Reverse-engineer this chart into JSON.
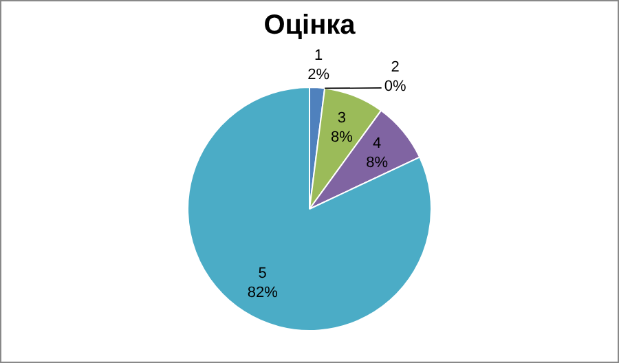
{
  "chart_data": {
    "type": "pie",
    "title": "Оцінка",
    "categories": [
      "1",
      "2",
      "3",
      "4",
      "5"
    ],
    "values": [
      2,
      0,
      8,
      8,
      82
    ],
    "value_labels": [
      "2%",
      "0%",
      "8%",
      "8%",
      "82%"
    ],
    "colors": [
      "#4f81bd",
      "#c0504d",
      "#9bbb59",
      "#8064a2",
      "#4bacc6"
    ],
    "legend": false
  }
}
